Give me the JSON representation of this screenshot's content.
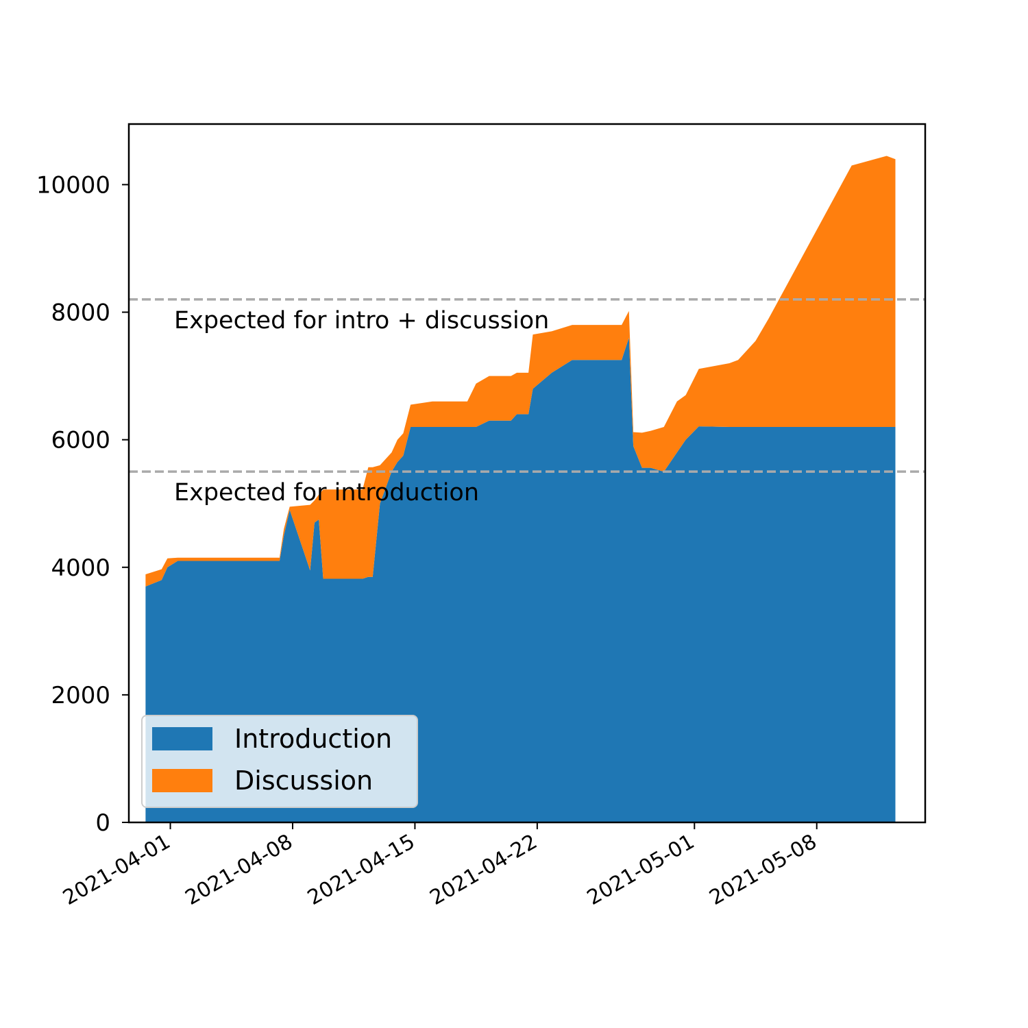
{
  "chart_data": {
    "type": "area",
    "stacked": true,
    "title": "",
    "xlabel": "",
    "ylabel": "",
    "x_ticks": [
      "2021-04-01",
      "2021-04-08",
      "2021-04-15",
      "2021-04-22",
      "2021-05-01",
      "2021-05-08"
    ],
    "y_ticks": [
      "0",
      "2000",
      "4000",
      "6000",
      "8000",
      "10000"
    ],
    "xlim": [
      "2021-03-29T15:00",
      "2021-05-14T05:00"
    ],
    "ylim": [
      0,
      10950
    ],
    "grid": false,
    "legend_position": "lower left",
    "x": [
      "2021-03-30T14:00",
      "2021-03-31T12:00",
      "2021-03-31T20:00",
      "2021-04-01T10:00",
      "2021-04-03T00:00",
      "2021-04-05T00:00",
      "2021-04-07T06:00",
      "2021-04-07T12:00",
      "2021-04-07T20:00",
      "2021-04-09T00:00",
      "2021-04-09T06:00",
      "2021-04-09T12:00",
      "2021-04-09T18:00",
      "2021-04-10T12:00",
      "2021-04-11T00:00",
      "2021-04-12T00:00",
      "2021-04-12T08:00",
      "2021-04-12T14:00",
      "2021-04-13T00:00",
      "2021-04-13T16:00",
      "2021-04-14T00:00",
      "2021-04-14T08:00",
      "2021-04-14T18:00",
      "2021-04-16T00:00",
      "2021-04-18T00:00",
      "2021-04-18T12:00",
      "2021-04-19T06:00",
      "2021-04-20T12:00",
      "2021-04-20T20:00",
      "2021-04-21T12:00",
      "2021-04-21T18:00",
      "2021-04-22T20:00",
      "2021-04-24T00:00",
      "2021-04-25T00:00",
      "2021-04-26T12:00",
      "2021-04-26T20:00",
      "2021-04-27T06:00",
      "2021-04-27T12:00",
      "2021-04-28T00:00",
      "2021-04-28T12:00",
      "2021-04-29T06:00",
      "2021-04-30T00:00",
      "2021-04-30T12:00",
      "2021-05-01T06:00",
      "2021-05-03T00:00",
      "2021-05-03T12:00",
      "2021-05-04T12:00",
      "2021-05-05T06:00",
      "2021-05-10T00:00",
      "2021-05-12T00:00",
      "2021-05-12T12:00"
    ],
    "series": [
      {
        "name": "Introduction",
        "color": "#1f77b4",
        "values": [
          3700,
          3800,
          4000,
          4100,
          4100,
          4100,
          4100,
          4500,
          4900,
          3950,
          4700,
          4750,
          3820,
          3820,
          3820,
          3820,
          3850,
          3850,
          5000,
          5500,
          5650,
          5750,
          6200,
          6200,
          6200,
          6200,
          6300,
          6300,
          6400,
          6400,
          6800,
          7050,
          7250,
          7250,
          7250,
          7250,
          7600,
          5900,
          5560,
          5560,
          5500,
          5800,
          6000,
          6210,
          6200,
          6200,
          6200,
          6200,
          6200,
          6200,
          6200
        ]
      },
      {
        "name": "Discussion",
        "color": "#ff7f0e",
        "values": [
          190,
          170,
          140,
          50,
          50,
          50,
          50,
          100,
          50,
          1030,
          350,
          390,
          1400,
          1400,
          1400,
          1400,
          1720,
          1720,
          600,
          300,
          350,
          350,
          350,
          400,
          400,
          680,
          700,
          700,
          650,
          650,
          850,
          650,
          550,
          550,
          550,
          550,
          420,
          220,
          550,
          580,
          700,
          800,
          700,
          900,
          1000,
          1050,
          1350,
          1700,
          4100,
          4250,
          4200
        ]
      }
    ],
    "reference_lines": [
      {
        "y": 8200,
        "label": "Expected for intro + discussion",
        "color": "#aaaaaa"
      },
      {
        "y": 5500,
        "label": "Expected for introduction",
        "color": "#aaaaaa"
      }
    ]
  }
}
